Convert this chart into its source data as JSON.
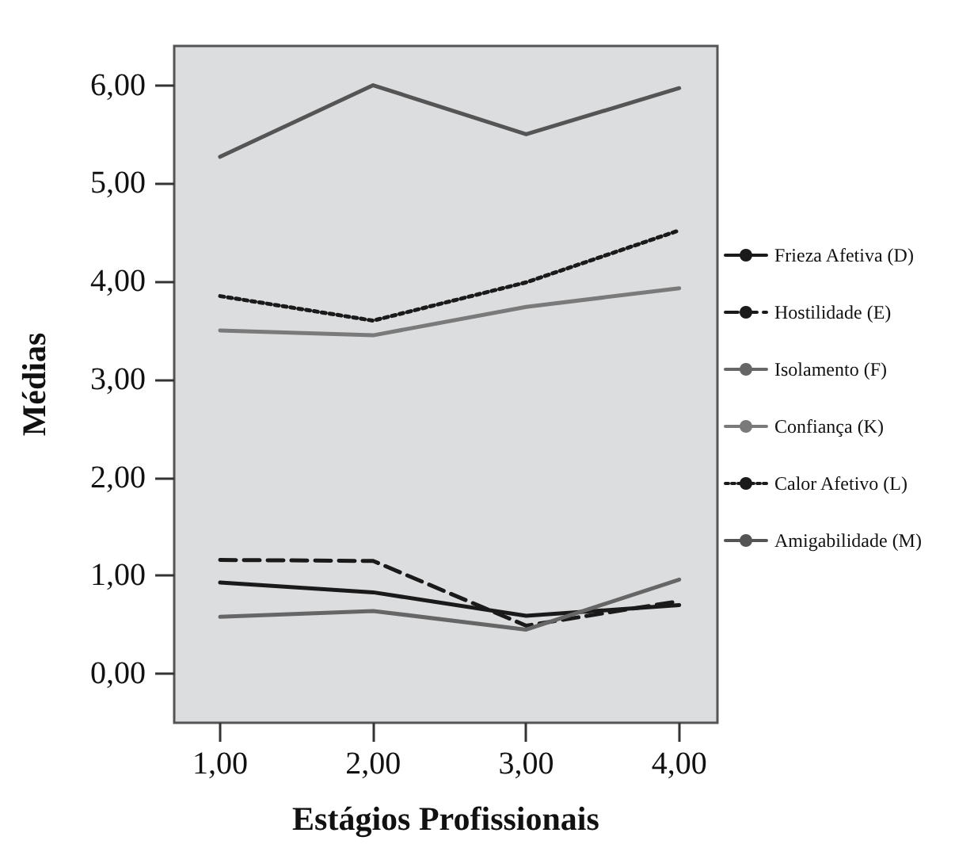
{
  "chart_data": {
    "type": "line",
    "xlabel": "Estágios Profissionais",
    "ylabel": "Médias",
    "x": [
      1,
      2,
      3,
      4
    ],
    "xlim": [
      0.7,
      4.25
    ],
    "xticks": [
      {
        "value": 1,
        "label": "1,00"
      },
      {
        "value": 2,
        "label": "2,00"
      },
      {
        "value": 3,
        "label": "3,00"
      },
      {
        "value": 4,
        "label": "4,00"
      }
    ],
    "ylim": [
      -0.5,
      6.4
    ],
    "yticks": [
      {
        "value": 0,
        "label": "0,00"
      },
      {
        "value": 1,
        "label": "1,00"
      },
      {
        "value": 2,
        "label": "2,00"
      },
      {
        "value": 3,
        "label": "3,00"
      },
      {
        "value": 4,
        "label": "4,00"
      },
      {
        "value": 5,
        "label": "5,00"
      },
      {
        "value": 6,
        "label": "6,00"
      }
    ],
    "grid": false,
    "legend": "right",
    "marker": "none",
    "series": [
      {
        "name": "Frieza Afetiva (D)",
        "color": "#1a1a1a",
        "line_style": "solid",
        "values": [
          0.93,
          0.83,
          0.59,
          0.7
        ]
      },
      {
        "name": "Hostilidade (E)",
        "color": "#1a1a1a",
        "line_style": "dashed",
        "values": [
          1.16,
          1.15,
          0.49,
          0.74
        ]
      },
      {
        "name": "Isolamento (F)",
        "color": "#666666",
        "line_style": "solid",
        "values": [
          0.58,
          0.64,
          0.45,
          0.96
        ]
      },
      {
        "name": "Confiança (K)",
        "color": "#7a7a7a",
        "line_style": "solid",
        "values": [
          3.5,
          3.45,
          3.74,
          3.93
        ]
      },
      {
        "name": "Calor Afetivo (L)",
        "color": "#1a1a1a",
        "line_style": "dotted",
        "values": [
          3.85,
          3.6,
          3.99,
          4.52
        ]
      },
      {
        "name": "Amigabilidade (M)",
        "color": "#555555",
        "line_style": "solid",
        "values": [
          5.27,
          6.0,
          5.5,
          5.97
        ]
      }
    ]
  }
}
